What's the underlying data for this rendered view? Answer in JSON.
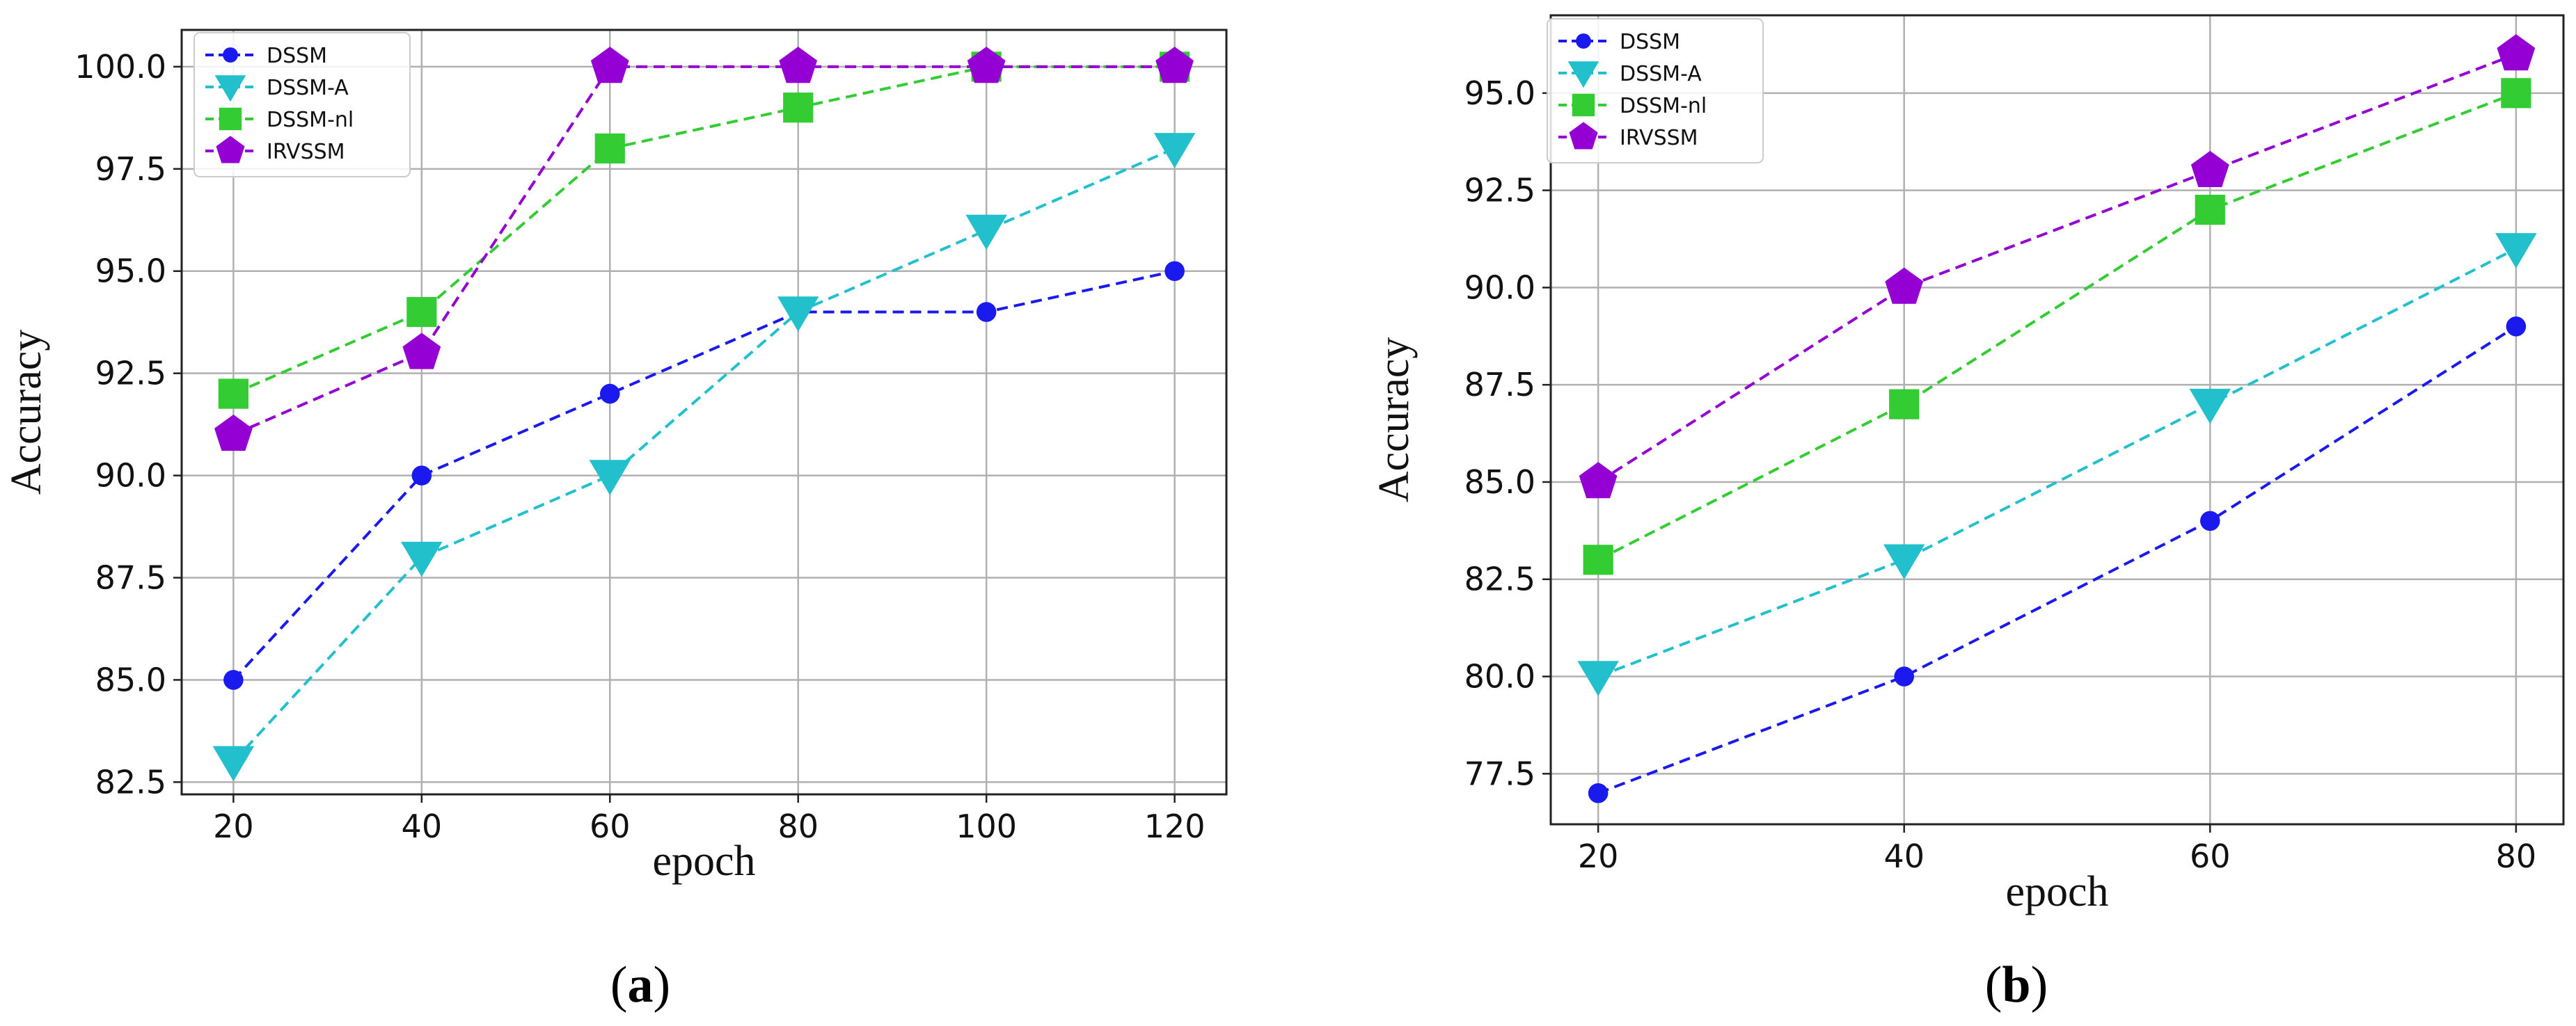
{
  "colors": {
    "DSSM": "#1a1aee",
    "DSSM-A": "#22c0cc",
    "DSSM-nl": "#33cc33",
    "IRVSSM": "#9400d3",
    "grid": "#b0b0b0",
    "axes": "#222222"
  },
  "chart_data": [
    {
      "type": "line",
      "panel_label": "a",
      "xlabel": "epoch",
      "ylabel": "Accuracy",
      "x": [
        20,
        40,
        60,
        80,
        100,
        120
      ],
      "xticks": [
        20,
        40,
        60,
        80,
        100,
        120
      ],
      "yticks": [
        82.5,
        85.0,
        87.5,
        90.0,
        92.5,
        95.0,
        97.5,
        100.0
      ],
      "xlim": [
        14.5,
        125.5
      ],
      "ylim": [
        82.2,
        100.9
      ],
      "grid": true,
      "legend_position": "upper-left",
      "series": [
        {
          "name": "DSSM",
          "marker": "circle",
          "values": [
            85,
            90,
            92,
            94,
            94,
            95
          ]
        },
        {
          "name": "DSSM-A",
          "marker": "triangle-down",
          "values": [
            83,
            88,
            90,
            94,
            96,
            98
          ]
        },
        {
          "name": "DSSM-nl",
          "marker": "square",
          "values": [
            92,
            94,
            98,
            99,
            100,
            100
          ]
        },
        {
          "name": "IRVSSM",
          "marker": "pentagon",
          "values": [
            91,
            93,
            100,
            100,
            100,
            100
          ]
        }
      ]
    },
    {
      "type": "line",
      "panel_label": "b",
      "xlabel": "epoch",
      "ylabel": "Accuracy",
      "x": [
        20,
        40,
        60,
        80
      ],
      "xticks": [
        20,
        40,
        60,
        80
      ],
      "yticks": [
        77.5,
        80.0,
        82.5,
        85.0,
        87.5,
        90.0,
        92.5,
        95.0
      ],
      "xlim": [
        16.9,
        83.1
      ],
      "ylim": [
        76.2,
        97.0
      ],
      "grid": true,
      "legend_position": "upper-left",
      "series": [
        {
          "name": "DSSM",
          "marker": "circle",
          "values": [
            77,
            80,
            84,
            89
          ]
        },
        {
          "name": "DSSM-A",
          "marker": "triangle-down",
          "values": [
            80,
            83,
            87,
            91
          ]
        },
        {
          "name": "DSSM-nl",
          "marker": "square",
          "values": [
            83,
            87,
            92,
            95
          ]
        },
        {
          "name": "IRVSSM",
          "marker": "pentagon",
          "values": [
            85,
            90,
            93,
            96
          ]
        }
      ]
    }
  ]
}
